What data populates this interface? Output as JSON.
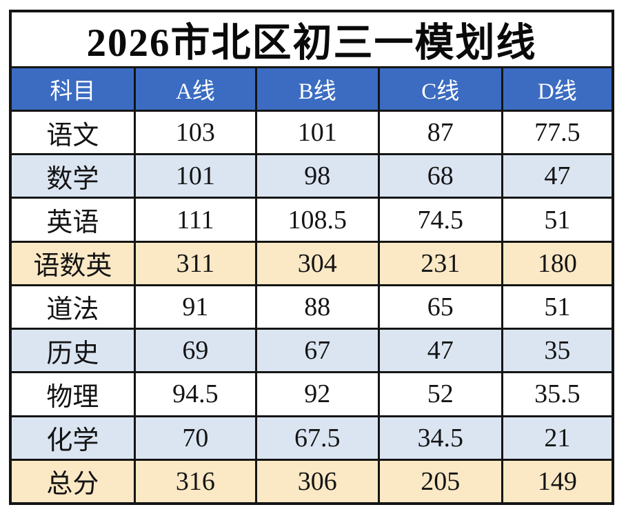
{
  "title": "2026市北区初三一模划线",
  "header": {
    "labels": [
      "科目",
      "A线",
      "B线",
      "C线",
      "D线"
    ]
  },
  "rows": [
    {
      "subject": "语文",
      "values": [
        "103",
        "101",
        "87",
        "77.5"
      ],
      "variant": "white"
    },
    {
      "subject": "数学",
      "values": [
        "101",
        "98",
        "68",
        "47"
      ],
      "variant": "blue"
    },
    {
      "subject": "英语",
      "values": [
        "111",
        "108.5",
        "74.5",
        "51"
      ],
      "variant": "white"
    },
    {
      "subject": "语数英",
      "values": [
        "311",
        "304",
        "231",
        "180"
      ],
      "variant": "yellow"
    },
    {
      "subject": "道法",
      "values": [
        "91",
        "88",
        "65",
        "51"
      ],
      "variant": "white"
    },
    {
      "subject": "历史",
      "values": [
        "69",
        "67",
        "47",
        "35"
      ],
      "variant": "blue"
    },
    {
      "subject": "物理",
      "values": [
        "94.5",
        "92",
        "52",
        "35.5"
      ],
      "variant": "white"
    },
    {
      "subject": "化学",
      "values": [
        "70",
        "67.5",
        "34.5",
        "21"
      ],
      "variant": "blue"
    },
    {
      "subject": "总分",
      "values": [
        "316",
        "306",
        "205",
        "149"
      ],
      "variant": "yellow"
    }
  ],
  "colors": {
    "header_bg": "#3b6cc2",
    "header_text": "#ffffff",
    "row_light_blue": "#dbe5f2",
    "row_yellow": "#fbe8c5",
    "grid_line": "#141414",
    "title_text": "#0a0a0a"
  },
  "chart_data": {
    "type": "table",
    "title": "2026市北区初三一模划线",
    "columns": [
      "科目",
      "A线",
      "B线",
      "C线",
      "D线"
    ],
    "rows": [
      [
        "语文",
        103,
        101,
        87,
        77.5
      ],
      [
        "数学",
        101,
        98,
        68,
        47
      ],
      [
        "英语",
        111,
        108.5,
        74.5,
        51
      ],
      [
        "语数英",
        311,
        304,
        231,
        180
      ],
      [
        "道法",
        91,
        88,
        65,
        51
      ],
      [
        "历史",
        69,
        67,
        47,
        35
      ],
      [
        "物理",
        94.5,
        92,
        52,
        35.5
      ],
      [
        "化学",
        70,
        67.5,
        34.5,
        21
      ],
      [
        "总分",
        316,
        306,
        205,
        149
      ]
    ]
  }
}
